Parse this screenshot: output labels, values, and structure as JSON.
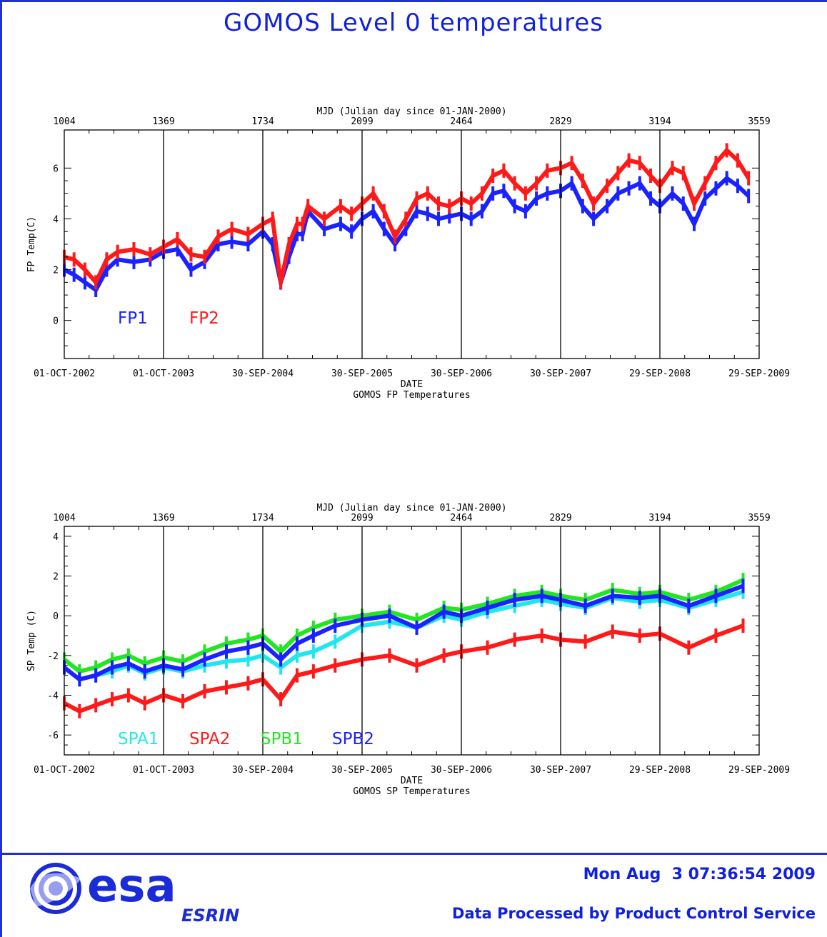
{
  "title": "GOMOS Level 0 temperatures",
  "footer": {
    "timestamp": "Mon Aug  3 07:36:54 2009",
    "processed": "Data Processed by Product Control Service",
    "logo_text": "esa",
    "logo_sub": "ESRIN"
  },
  "colors": {
    "frame": "#2030d8",
    "title": "#1020e0",
    "FP1": "#1a22ff",
    "FP2": "#ff1a1a",
    "SPA1": "#22e6ee",
    "SPA2": "#ff1a1a",
    "SPB1": "#22e622",
    "SPB2": "#1a22ff"
  },
  "chart_data": [
    {
      "type": "line",
      "title": "",
      "subtitle": "GOMOS FP Temperatures",
      "xlabel": "DATE",
      "x2label": "MJD (Julian day since 01-JAN-2000)",
      "ylabel": "FP Temp(C)",
      "xlim": [
        1004,
        3559
      ],
      "ylim": [
        -1.5,
        7.5
      ],
      "x_ticks": [
        1004,
        1369,
        1734,
        2099,
        2464,
        2829,
        3194,
        3559
      ],
      "x_tick_labels": [
        "01-OCT-2002",
        "01-OCT-2003",
        "30-SEP-2004",
        "30-SEP-2005",
        "30-SEP-2006",
        "30-SEP-2007",
        "29-SEP-2008",
        "29-SEP-2009"
      ],
      "x2_tick_labels": [
        "1004",
        "1369",
        "1734",
        "2099",
        "2464",
        "2829",
        "3194",
        "3559"
      ],
      "y_ticks": [
        0,
        2,
        4,
        6
      ],
      "y_tick_labels": [
        "0",
        "2",
        "4",
        "6"
      ],
      "vertical_grid": true,
      "legend_position": "bottom-left",
      "series": [
        {
          "name": "FP1",
          "x": [
            1004,
            1040,
            1080,
            1120,
            1160,
            1200,
            1260,
            1320,
            1369,
            1420,
            1470,
            1520,
            1570,
            1620,
            1680,
            1734,
            1770,
            1800,
            1830,
            1860,
            1880,
            1900,
            1960,
            2020,
            2060,
            2099,
            2140,
            2180,
            2220,
            2260,
            2300,
            2340,
            2380,
            2420,
            2464,
            2500,
            2540,
            2580,
            2620,
            2660,
            2700,
            2740,
            2780,
            2829,
            2870,
            2910,
            2950,
            3000,
            3040,
            3080,
            3120,
            3160,
            3194,
            3240,
            3280,
            3320,
            3360,
            3400,
            3440,
            3480,
            3520
          ],
          "y": [
            2.0,
            1.8,
            1.5,
            1.2,
            2.0,
            2.4,
            2.3,
            2.4,
            2.7,
            2.8,
            2.0,
            2.3,
            3.0,
            3.1,
            3.0,
            3.5,
            3.0,
            1.5,
            2.5,
            3.4,
            3.4,
            4.3,
            3.6,
            3.8,
            3.5,
            4.0,
            4.3,
            3.6,
            3.0,
            3.6,
            4.3,
            4.2,
            4.0,
            4.1,
            4.2,
            4.0,
            4.3,
            5.0,
            5.1,
            4.5,
            4.3,
            4.8,
            5.0,
            5.1,
            5.4,
            4.5,
            4.0,
            4.5,
            5.0,
            5.2,
            5.4,
            4.8,
            4.5,
            5.0,
            4.6,
            3.8,
            4.8,
            5.2,
            5.6,
            5.3,
            4.9
          ]
        },
        {
          "name": "FP2",
          "x": [
            1004,
            1040,
            1080,
            1120,
            1160,
            1200,
            1260,
            1320,
            1369,
            1420,
            1470,
            1520,
            1570,
            1620,
            1680,
            1734,
            1770,
            1800,
            1830,
            1860,
            1880,
            1900,
            1960,
            2020,
            2060,
            2099,
            2140,
            2180,
            2220,
            2260,
            2300,
            2340,
            2380,
            2420,
            2464,
            2500,
            2540,
            2580,
            2620,
            2660,
            2700,
            2740,
            2780,
            2829,
            2870,
            2910,
            2950,
            3000,
            3040,
            3080,
            3120,
            3160,
            3194,
            3240,
            3280,
            3320,
            3360,
            3400,
            3440,
            3480,
            3520
          ],
          "y": [
            2.5,
            2.4,
            2.0,
            1.5,
            2.4,
            2.7,
            2.8,
            2.6,
            2.9,
            3.2,
            2.6,
            2.5,
            3.3,
            3.6,
            3.4,
            3.8,
            4.0,
            1.5,
            3.0,
            3.8,
            3.8,
            4.5,
            4.0,
            4.5,
            4.2,
            4.6,
            5.0,
            4.3,
            3.3,
            4.0,
            4.8,
            5.0,
            4.6,
            4.5,
            4.8,
            4.6,
            5.0,
            5.7,
            5.9,
            5.4,
            5.0,
            5.4,
            5.9,
            6.0,
            6.2,
            5.5,
            4.6,
            5.3,
            5.8,
            6.3,
            6.2,
            5.7,
            5.3,
            6.0,
            5.8,
            4.6,
            5.4,
            6.2,
            6.7,
            6.3,
            5.6
          ]
        }
      ]
    },
    {
      "type": "line",
      "title": "",
      "subtitle": "GOMOS SP Temperatures",
      "xlabel": "DATE",
      "x2label": "MJD (Julian day since 01-JAN-2000)",
      "ylabel": "SP Temp (C)",
      "xlim": [
        1004,
        3559
      ],
      "ylim": [
        -7,
        4.5
      ],
      "x_ticks": [
        1004,
        1369,
        1734,
        2099,
        2464,
        2829,
        3194,
        3559
      ],
      "x_tick_labels": [
        "01-OCT-2002",
        "01-OCT-2003",
        "30-SEP-2004",
        "30-SEP-2005",
        "30-SEP-2006",
        "30-SEP-2007",
        "29-SEP-2008",
        "29-SEP-2009"
      ],
      "x2_tick_labels": [
        "1004",
        "1369",
        "1734",
        "2099",
        "2464",
        "2829",
        "3194",
        "3559"
      ],
      "y_ticks": [
        -6,
        -4,
        -2,
        0,
        2,
        4
      ],
      "y_tick_labels": [
        "-6",
        "-4",
        "-2",
        "0",
        "2",
        "4"
      ],
      "vertical_grid": true,
      "legend_position": "bottom-left",
      "series": [
        {
          "name": "SPA1",
          "x": [
            1004,
            1060,
            1120,
            1180,
            1240,
            1300,
            1369,
            1440,
            1520,
            1600,
            1680,
            1734,
            1800,
            1860,
            1920,
            2000,
            2099,
            2200,
            2300,
            2400,
            2464,
            2560,
            2660,
            2760,
            2829,
            2920,
            3020,
            3120,
            3194,
            3300,
            3400,
            3500
          ],
          "y": [
            -2.6,
            -3.2,
            -3.0,
            -2.8,
            -2.5,
            -2.9,
            -2.6,
            -2.8,
            -2.5,
            -2.3,
            -2.2,
            -2.0,
            -2.6,
            -2.0,
            -1.8,
            -1.3,
            -0.5,
            -0.3,
            -0.6,
            0.0,
            -0.2,
            0.2,
            0.5,
            0.8,
            0.6,
            0.4,
            0.9,
            0.7,
            0.8,
            0.4,
            0.8,
            1.2
          ]
        },
        {
          "name": "SPA2",
          "x": [
            1004,
            1060,
            1120,
            1180,
            1240,
            1300,
            1369,
            1440,
            1520,
            1600,
            1680,
            1734,
            1800,
            1860,
            1920,
            2000,
            2099,
            2200,
            2300,
            2400,
            2464,
            2560,
            2660,
            2760,
            2829,
            2920,
            3020,
            3120,
            3194,
            3300,
            3400,
            3500
          ],
          "y": [
            -4.4,
            -4.8,
            -4.5,
            -4.2,
            -4.0,
            -4.4,
            -4.0,
            -4.3,
            -3.8,
            -3.6,
            -3.4,
            -3.2,
            -4.2,
            -3.0,
            -2.8,
            -2.5,
            -2.2,
            -2.0,
            -2.5,
            -2.0,
            -1.8,
            -1.6,
            -1.2,
            -1.0,
            -1.2,
            -1.3,
            -0.8,
            -1.0,
            -0.9,
            -1.6,
            -1.0,
            -0.5
          ]
        },
        {
          "name": "SPB1",
          "x": [
            1004,
            1060,
            1120,
            1180,
            1240,
            1300,
            1369,
            1440,
            1520,
            1600,
            1680,
            1734,
            1800,
            1860,
            1920,
            2000,
            2099,
            2200,
            2300,
            2400,
            2464,
            2560,
            2660,
            2760,
            2829,
            2920,
            3020,
            3120,
            3194,
            3300,
            3400,
            3500
          ],
          "y": [
            -2.2,
            -2.8,
            -2.6,
            -2.2,
            -2.0,
            -2.4,
            -2.1,
            -2.3,
            -1.8,
            -1.4,
            -1.2,
            -1.0,
            -1.8,
            -1.0,
            -0.6,
            -0.2,
            0.0,
            0.2,
            -0.2,
            0.4,
            0.3,
            0.6,
            1.0,
            1.2,
            1.0,
            0.8,
            1.3,
            1.1,
            1.2,
            0.8,
            1.2,
            1.8
          ]
        },
        {
          "name": "SPB2",
          "x": [
            1004,
            1060,
            1120,
            1180,
            1240,
            1300,
            1369,
            1440,
            1520,
            1600,
            1680,
            1734,
            1800,
            1860,
            1920,
            2000,
            2099,
            2200,
            2300,
            2400,
            2464,
            2560,
            2660,
            2760,
            2829,
            2920,
            3020,
            3120,
            3194,
            3300,
            3400,
            3500
          ],
          "y": [
            -2.6,
            -3.2,
            -3.0,
            -2.6,
            -2.4,
            -2.8,
            -2.5,
            -2.7,
            -2.2,
            -1.8,
            -1.6,
            -1.4,
            -2.2,
            -1.4,
            -1.0,
            -0.5,
            -0.2,
            0.0,
            -0.6,
            0.2,
            0.0,
            0.4,
            0.8,
            1.0,
            0.8,
            0.5,
            1.0,
            0.9,
            1.0,
            0.5,
            1.0,
            1.5
          ]
        }
      ]
    }
  ]
}
